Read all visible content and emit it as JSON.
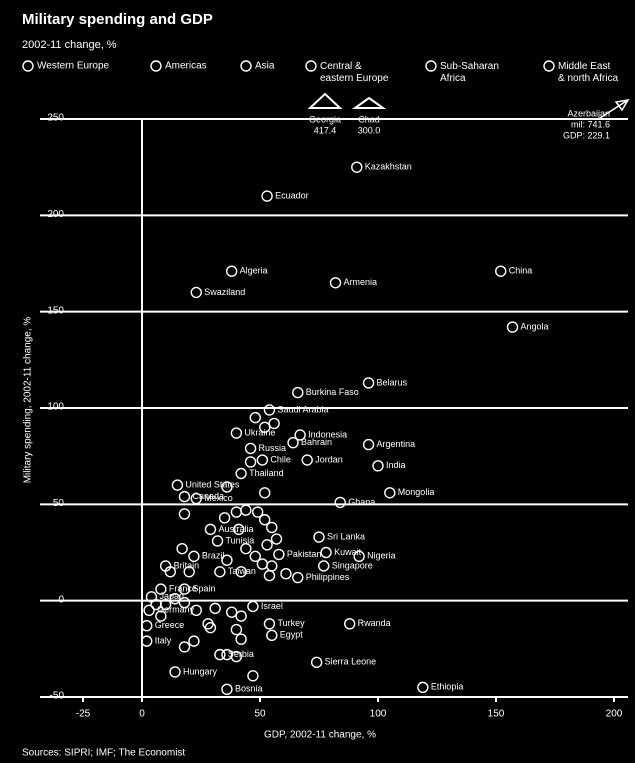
{
  "chart_data": {
    "type": "scatter",
    "title": "Military spending and GDP",
    "subtitle": "2002-11 change, %",
    "x_label": "GDP, 2002-11 change, %",
    "y_label": "Military spending, 2002-11 change, %",
    "source": "Sources: SIPRI; IMF; The Economist",
    "legend": [
      "Western Europe",
      "Americas",
      "Asia",
      "Central & eastern Europe",
      "Sub-Saharan Africa",
      "Middle East & north Africa"
    ],
    "color": "#ffffff",
    "xlim": [
      -25,
      200
    ],
    "xticks": [
      {
        "value": -25,
        "label": "-25"
      },
      0,
      50,
      100,
      150,
      200
    ],
    "ylim": [
      -50,
      250
    ],
    "yticks": [
      {
        "value": -50,
        "label": "-50"
      },
      0,
      50,
      100,
      150,
      200,
      250
    ],
    "grid": true,
    "annotations": [
      {
        "label": "Georgia",
        "text": "417.4"
      },
      {
        "label": "Chad",
        "text": "300.0"
      },
      {
        "label": "Azerbaijan",
        "text": "mil: 741.6",
        "text2": "GDP: 229.1"
      }
    ],
    "labels": [
      "Kazakhstan",
      "Ecuador",
      "Algeria",
      "Armenia",
      "China",
      "Swaziland",
      "Angola",
      "Belarus",
      "Burkina Faso",
      "Saudi Arabia",
      "Indonesia",
      "Ukraine",
      "Bahrain",
      "Argentina",
      "Russia",
      "Chile",
      "Jordan",
      "India",
      "Thailand",
      "United States",
      "Mongolia",
      "Ghana",
      "Canada",
      "Mexico",
      "Australia",
      "Tunisia",
      "Sri Lanka",
      "Kuwait",
      "Brazil",
      "Nigeria",
      "Pakistan",
      "Britain",
      "Taiwan",
      "Philippines",
      "Singapore",
      "France",
      "Spain",
      "Japan",
      "Germany",
      "Greece",
      "Italy",
      "Israel",
      "Turkey",
      "Rwanda",
      "Egypt",
      "Serbia",
      "Hungary",
      "Sierra Leone",
      "Ethiopia",
      "Bosnia",
      null,
      null,
      null,
      null,
      null,
      null,
      null,
      null,
      null,
      null,
      null,
      null,
      null,
      null,
      null,
      null,
      null,
      null,
      null,
      null,
      null,
      null,
      null,
      null,
      null,
      null,
      null,
      null,
      null,
      null,
      null,
      null,
      null,
      null,
      null,
      null,
      null,
      null,
      null,
      null,
      null,
      null,
      null,
      null,
      null
    ],
    "x": [
      91,
      53,
      38,
      82,
      152,
      23,
      157,
      96,
      66,
      54,
      67,
      40,
      64,
      96,
      46,
      51,
      70,
      100,
      42,
      15,
      105,
      84,
      18,
      23,
      29,
      32,
      75,
      78,
      22,
      92,
      58,
      10,
      33,
      66,
      77,
      8,
      18,
      4,
      3,
      2,
      2,
      47,
      54,
      88,
      55,
      33,
      14,
      74,
      119,
      36,
      18,
      35,
      40,
      44,
      49,
      52,
      41,
      55,
      57,
      44,
      48,
      51,
      54,
      61,
      42,
      36,
      17,
      20,
      12,
      14,
      10,
      6,
      8,
      18,
      23,
      31,
      38,
      42,
      40,
      29,
      22,
      18,
      42,
      36,
      40,
      47,
      28,
      55,
      53,
      52,
      48,
      52,
      56,
      46,
      36
    ],
    "values": [
      225,
      210,
      171,
      165,
      171,
      160,
      142,
      113,
      108,
      99,
      86,
      87,
      82,
      81,
      79,
      73,
      73,
      70,
      66,
      60,
      56,
      51,
      54,
      53,
      37,
      31,
      33,
      25,
      23,
      23,
      24,
      18,
      15,
      12,
      18,
      6,
      6,
      2,
      -5,
      -13,
      -21,
      -3,
      -12,
      -12,
      -18,
      -28,
      -37,
      -32,
      -45,
      -46,
      45,
      43,
      46,
      47,
      46,
      42,
      37,
      38,
      32,
      27,
      23,
      19,
      13,
      14,
      15,
      21,
      27,
      15,
      15,
      1,
      -2,
      -2,
      -8,
      -1,
      -5,
      -4,
      -6,
      -8,
      -15,
      -14,
      -21,
      -24,
      -20,
      -28,
      -29,
      -39,
      -12,
      18,
      29,
      56,
      95,
      90,
      92,
      72,
      59
    ]
  }
}
